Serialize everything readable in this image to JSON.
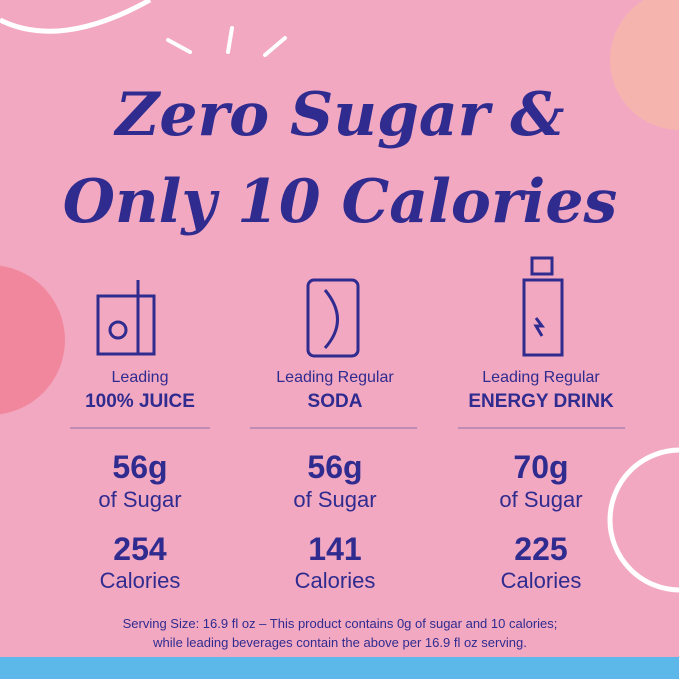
{
  "headline": {
    "line1": "Zero Sugar &",
    "line2": "Only 10 Calories"
  },
  "columns": [
    {
      "label": "Leading",
      "name": "100% JUICE",
      "sugar": "56g",
      "sugar_unit": "of Sugar",
      "calories": "254",
      "calories_unit": "Calories"
    },
    {
      "label": "Leading Regular",
      "name": "SODA",
      "sugar": "56g",
      "sugar_unit": "of Sugar",
      "calories": "141",
      "calories_unit": "Calories"
    },
    {
      "label": "Leading Regular",
      "name": "ENERGY DRINK",
      "sugar": "70g",
      "sugar_unit": "of Sugar",
      "calories": "225",
      "calories_unit": "Calories"
    }
  ],
  "footnote": {
    "line1": "Serving Size: 16.9 fl oz – This product contains 0g of sugar and 10 calories;",
    "line2": "while leading beverages contain the above per 16.9 fl oz serving."
  }
}
